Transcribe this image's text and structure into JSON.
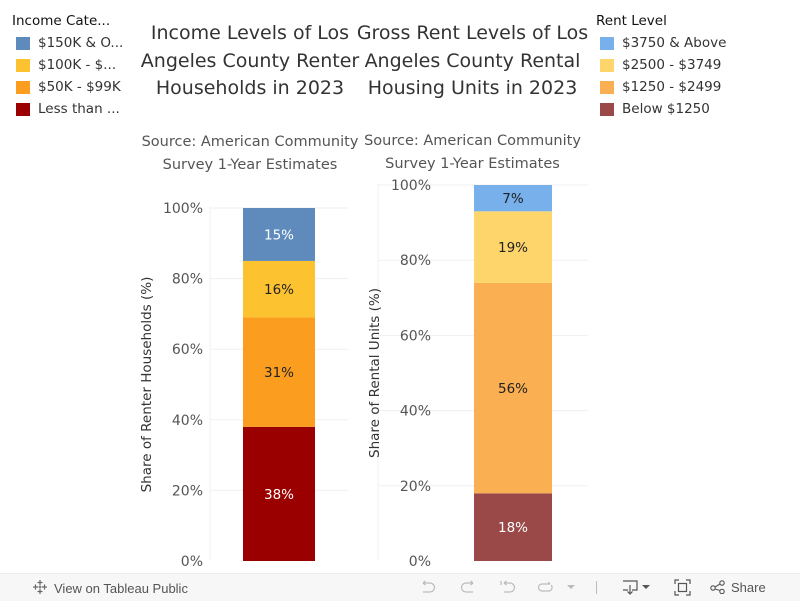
{
  "legends": {
    "income": {
      "title": "Income Cate...",
      "items": [
        {
          "label": "$150K & O...",
          "color": "#5f8bbc"
        },
        {
          "label": "$100K - $...",
          "color": "#fdc22f"
        },
        {
          "label": "$50K - $99K",
          "color": "#fb9e1f"
        },
        {
          "label": "Less than ...",
          "color": "#9b0000"
        }
      ]
    },
    "rent": {
      "title": "Rent Level",
      "items": [
        {
          "label": "$3750 & Above",
          "color": "#78b0ec"
        },
        {
          "label": "$2500 - $3749",
          "color": "#fed56a"
        },
        {
          "label": "$1250 - $2499",
          "color": "#fab052"
        },
        {
          "label": "Below $1250",
          "color": "#9a4848"
        }
      ]
    }
  },
  "charts": {
    "income": {
      "title": "Income Levels of Los Angeles County Renter Households in 2023",
      "subtitle": "Source: American Community Survey 1-Year Estimates"
    },
    "rent": {
      "title": "Gross Rent Levels of Los Angeles County Rental Housing Units in 2023",
      "subtitle": "Source: American Community Survey 1-Year Estimates"
    }
  },
  "chart_data": [
    {
      "type": "bar",
      "stacked": true,
      "title": "Income Levels of Los Angeles County Renter Households in 2023",
      "subtitle": "Source: American Community Survey 1-Year Estimates",
      "xlabel": "",
      "ylabel": "Share of Renter Households (%)",
      "ylim": [
        0,
        100
      ],
      "yticks": [
        "0%",
        "20%",
        "40%",
        "60%",
        "80%",
        "100%"
      ],
      "grid": true,
      "legend_title": "Income Cate...",
      "legend_position": "left",
      "categories": [
        ""
      ],
      "series": [
        {
          "name": "Less than ...",
          "values": [
            38
          ],
          "label": "38%",
          "color": "#9b0000",
          "label_color": "#ffffff"
        },
        {
          "name": "$50K - $99K",
          "values": [
            31
          ],
          "label": "31%",
          "color": "#fb9e1f",
          "label_color": "#222222"
        },
        {
          "name": "$100K - $...",
          "values": [
            16
          ],
          "label": "16%",
          "color": "#fdc22f",
          "label_color": "#222222"
        },
        {
          "name": "$150K & O...",
          "values": [
            15
          ],
          "label": "15%",
          "color": "#5f8bbc",
          "label_color": "#ffffff"
        }
      ]
    },
    {
      "type": "bar",
      "stacked": true,
      "title": "Gross Rent Levels of Los Angeles County Rental Housing Units in 2023",
      "subtitle": "Source: American Community Survey 1-Year Estimates",
      "xlabel": "",
      "ylabel": "Share of Rental Units (%)",
      "ylim": [
        0,
        100
      ],
      "yticks": [
        "0%",
        "20%",
        "40%",
        "60%",
        "80%",
        "100%"
      ],
      "grid": true,
      "legend_title": "Rent Level",
      "legend_position": "right",
      "categories": [
        ""
      ],
      "series": [
        {
          "name": "Below $1250",
          "values": [
            18
          ],
          "label": "18%",
          "color": "#9a4848",
          "label_color": "#ffffff"
        },
        {
          "name": "$1250 - $2499",
          "values": [
            56
          ],
          "label": "56%",
          "color": "#fab052",
          "label_color": "#222222"
        },
        {
          "name": "$2500 - $3749",
          "values": [
            19
          ],
          "label": "19%",
          "color": "#fed56a",
          "label_color": "#222222"
        },
        {
          "name": "$3750 & Above",
          "values": [
            7
          ],
          "label": "7%",
          "color": "#78b0ec",
          "label_color": "#222222"
        }
      ]
    }
  ],
  "toolbar": {
    "view_on_label": "View on Tableau Public",
    "share_label": "Share",
    "icons": [
      "tableau-logo-icon",
      "undo-icon",
      "redo-icon",
      "revert-icon",
      "refresh-icon",
      "dropdown-icon",
      "download-icon",
      "fullscreen-icon",
      "share-icon"
    ]
  }
}
